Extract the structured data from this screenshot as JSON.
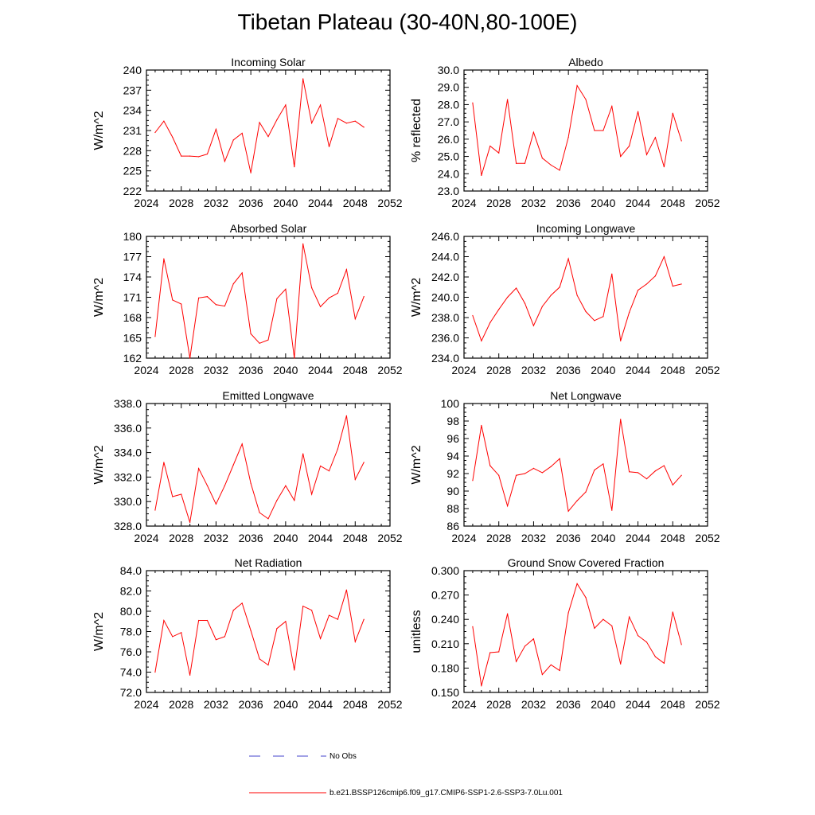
{
  "title": "Tibetan Plateau (30-40N,80-100E)",
  "legend": {
    "obs_label": "No Obs",
    "model_label": "b.e21.BSSP126cmip6.f09_g17.CMIP6-SSP1-2.6-SSP3-7.0Lu.001",
    "obs_color": "#4444cc",
    "model_color": "#ff0000"
  },
  "chart_data": [
    {
      "type": "line",
      "title": "Incoming Solar",
      "ylabel": "W/m^2",
      "xlim": [
        2024,
        2052
      ],
      "xticks": [
        "2024",
        "2028",
        "2032",
        "2036",
        "2040",
        "2044",
        "2048",
        "2052"
      ],
      "ylim": [
        222,
        240
      ],
      "yticks": [
        "222",
        "225",
        "228",
        "231",
        "234",
        "237",
        "240"
      ],
      "x": [
        2025,
        2026,
        2027,
        2028,
        2029,
        2030,
        2031,
        2032,
        2033,
        2034,
        2035,
        2036,
        2037,
        2038,
        2039,
        2040,
        2041,
        2042,
        2043,
        2044,
        2045,
        2046,
        2047,
        2048,
        2049
      ],
      "series": [
        {
          "values": [
            230.7,
            232.4,
            230.0,
            227.2,
            227.2,
            227.1,
            227.5,
            231.2,
            226.4,
            229.6,
            230.6,
            224.7,
            232.2,
            230.1,
            232.6,
            234.8,
            225.6,
            238.7,
            232.1,
            234.8,
            228.6,
            232.8,
            232.1,
            232.4,
            231.5
          ]
        }
      ]
    },
    {
      "type": "line",
      "title": "Albedo",
      "ylabel": "% reflected",
      "xlim": [
        2024,
        2052
      ],
      "xticks": [
        "2024",
        "2028",
        "2032",
        "2036",
        "2040",
        "2044",
        "2048",
        "2052"
      ],
      "ylim": [
        23.0,
        30.0
      ],
      "yticks": [
        "23.0",
        "24.0",
        "25.0",
        "26.0",
        "27.0",
        "28.0",
        "29.0",
        "30.0"
      ],
      "x": [
        2025,
        2026,
        2027,
        2028,
        2029,
        2030,
        2031,
        2032,
        2033,
        2034,
        2035,
        2036,
        2037,
        2038,
        2039,
        2040,
        2041,
        2042,
        2043,
        2044,
        2045,
        2046,
        2047,
        2048,
        2049
      ],
      "series": [
        {
          "values": [
            28.1,
            23.9,
            25.6,
            25.2,
            28.3,
            24.6,
            24.6,
            26.4,
            24.9,
            24.5,
            24.2,
            26.1,
            29.1,
            28.3,
            26.5,
            26.5,
            27.9,
            25.0,
            25.6,
            27.6,
            25.1,
            26.1,
            24.4,
            27.5,
            25.9
          ]
        }
      ]
    },
    {
      "type": "line",
      "title": "Absorbed Solar",
      "ylabel": "W/m^2",
      "xlim": [
        2024,
        2052
      ],
      "xticks": [
        "2024",
        "2028",
        "2032",
        "2036",
        "2040",
        "2044",
        "2048",
        "2052"
      ],
      "ylim": [
        162,
        180
      ],
      "yticks": [
        "162",
        "165",
        "168",
        "171",
        "174",
        "177",
        "180"
      ],
      "x": [
        2025,
        2026,
        2027,
        2028,
        2029,
        2030,
        2031,
        2032,
        2033,
        2034,
        2035,
        2036,
        2037,
        2038,
        2039,
        2040,
        2041,
        2042,
        2043,
        2044,
        2045,
        2046,
        2047,
        2048,
        2049
      ],
      "series": [
        {
          "values": [
            165.2,
            176.7,
            170.6,
            170.0,
            162.0,
            170.9,
            171.1,
            169.9,
            169.7,
            173.0,
            174.6,
            165.6,
            164.2,
            164.7,
            170.8,
            172.2,
            162.0,
            178.9,
            172.4,
            169.6,
            170.9,
            171.6,
            175.1,
            167.8,
            171.1
          ]
        }
      ]
    },
    {
      "type": "line",
      "title": "Incoming Longwave",
      "ylabel": "W/m^2",
      "xlim": [
        2024,
        2052
      ],
      "xticks": [
        "2024",
        "2028",
        "2032",
        "2036",
        "2040",
        "2044",
        "2048",
        "2052"
      ],
      "ylim": [
        234.0,
        246.0
      ],
      "yticks": [
        "234.0",
        "236.0",
        "238.0",
        "240.0",
        "242.0",
        "244.0",
        "246.0"
      ],
      "x": [
        2025,
        2026,
        2027,
        2028,
        2029,
        2030,
        2031,
        2032,
        2033,
        2034,
        2035,
        2036,
        2037,
        2038,
        2039,
        2040,
        2041,
        2042,
        2043,
        2044,
        2045,
        2046,
        2047,
        2048,
        2049
      ],
      "series": [
        {
          "values": [
            238.2,
            235.7,
            237.5,
            238.8,
            240.0,
            240.9,
            239.4,
            237.2,
            239.1,
            240.2,
            241.0,
            243.8,
            240.2,
            238.6,
            237.7,
            238.1,
            242.3,
            235.7,
            238.5,
            240.7,
            241.3,
            242.1,
            244.0,
            241.1,
            241.3
          ]
        }
      ]
    },
    {
      "type": "line",
      "title": "Emitted Longwave",
      "ylabel": "W/m^2",
      "xlim": [
        2024,
        2052
      ],
      "xticks": [
        "2024",
        "2028",
        "2032",
        "2036",
        "2040",
        "2044",
        "2048",
        "2052"
      ],
      "ylim": [
        328.0,
        338.0
      ],
      "yticks": [
        "328.0",
        "330.0",
        "332.0",
        "334.0",
        "336.0",
        "338.0"
      ],
      "x": [
        2025,
        2026,
        2027,
        2028,
        2029,
        2030,
        2031,
        2032,
        2033,
        2034,
        2035,
        2036,
        2037,
        2038,
        2039,
        2040,
        2041,
        2042,
        2043,
        2044,
        2045,
        2046,
        2047,
        2048,
        2049
      ],
      "series": [
        {
          "values": [
            329.3,
            333.2,
            330.4,
            330.6,
            328.3,
            332.7,
            331.3,
            329.8,
            331.3,
            333.0,
            334.7,
            331.5,
            329.1,
            328.6,
            330.1,
            331.3,
            330.1,
            333.9,
            330.6,
            332.9,
            332.5,
            334.3,
            337.0,
            331.8,
            333.2
          ]
        }
      ]
    },
    {
      "type": "line",
      "title": "Net Longwave",
      "ylabel": "W/m^2",
      "xlim": [
        2024,
        2052
      ],
      "xticks": [
        "2024",
        "2028",
        "2032",
        "2036",
        "2040",
        "2044",
        "2048",
        "2052"
      ],
      "ylim": [
        86,
        100
      ],
      "yticks": [
        "86",
        "88",
        "90",
        "92",
        "94",
        "96",
        "98",
        "100"
      ],
      "x": [
        2025,
        2026,
        2027,
        2028,
        2029,
        2030,
        2031,
        2032,
        2033,
        2034,
        2035,
        2036,
        2037,
        2038,
        2039,
        2040,
        2041,
        2042,
        2043,
        2044,
        2045,
        2046,
        2047,
        2048,
        2049
      ],
      "series": [
        {
          "values": [
            91.2,
            97.5,
            92.9,
            91.8,
            88.3,
            91.8,
            92.0,
            92.6,
            92.1,
            92.8,
            93.7,
            87.7,
            88.9,
            89.9,
            92.4,
            93.1,
            87.8,
            98.2,
            92.2,
            92.1,
            91.4,
            92.3,
            92.9,
            90.7,
            91.8
          ]
        }
      ]
    },
    {
      "type": "line",
      "title": "Net Radiation",
      "ylabel": "W/m^2",
      "xlim": [
        2024,
        2052
      ],
      "xticks": [
        "2024",
        "2028",
        "2032",
        "2036",
        "2040",
        "2044",
        "2048",
        "2052"
      ],
      "ylim": [
        72.0,
        84.0
      ],
      "yticks": [
        "72.0",
        "74.0",
        "76.0",
        "78.0",
        "80.0",
        "82.0",
        "84.0"
      ],
      "x": [
        2025,
        2026,
        2027,
        2028,
        2029,
        2030,
        2031,
        2032,
        2033,
        2034,
        2035,
        2036,
        2037,
        2038,
        2039,
        2040,
        2041,
        2042,
        2043,
        2044,
        2045,
        2046,
        2047,
        2048,
        2049
      ],
      "series": [
        {
          "values": [
            74.0,
            79.1,
            77.5,
            77.9,
            73.7,
            79.1,
            79.1,
            77.2,
            77.5,
            80.1,
            80.8,
            78.1,
            75.3,
            74.7,
            78.3,
            79.0,
            74.2,
            80.5,
            80.1,
            77.3,
            79.6,
            79.2,
            82.1,
            77.0,
            79.2
          ]
        }
      ]
    },
    {
      "type": "line",
      "title": "Ground Snow Covered Fraction",
      "ylabel": "unitless",
      "xlim": [
        2024,
        2052
      ],
      "xticks": [
        "2024",
        "2028",
        "2032",
        "2036",
        "2040",
        "2044",
        "2048",
        "2052"
      ],
      "ylim": [
        0.15,
        0.3
      ],
      "yticks": [
        "0.150",
        "0.180",
        "0.210",
        "0.240",
        "0.270",
        "0.300"
      ],
      "x": [
        2025,
        2026,
        2027,
        2028,
        2029,
        2030,
        2031,
        2032,
        2033,
        2034,
        2035,
        2036,
        2037,
        2038,
        2039,
        2040,
        2041,
        2042,
        2043,
        2044,
        2045,
        2046,
        2047,
        2048,
        2049
      ],
      "series": [
        {
          "values": [
            0.231,
            0.158,
            0.199,
            0.2,
            0.247,
            0.188,
            0.207,
            0.216,
            0.172,
            0.184,
            0.177,
            0.248,
            0.284,
            0.267,
            0.229,
            0.24,
            0.232,
            0.185,
            0.243,
            0.22,
            0.212,
            0.194,
            0.186,
            0.249,
            0.209
          ]
        }
      ]
    }
  ]
}
